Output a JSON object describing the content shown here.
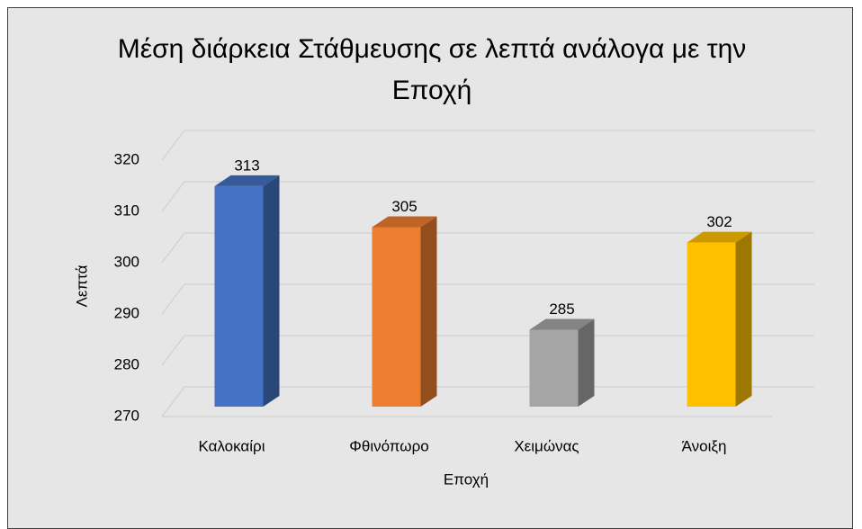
{
  "chart_data": {
    "type": "bar3d",
    "title": "Μέση διάρκεια Στάθμευσης σε λεπτά ανάλογα με την Εποχή",
    "xlabel": "Εποχή",
    "ylabel": "Λεπτά",
    "categories": [
      "Καλοκαίρι",
      "Φθινόπωρο",
      "Χειμώνας",
      "Άνοιξη"
    ],
    "values": [
      313,
      305,
      285,
      302
    ],
    "colors": [
      "#4472c4",
      "#ed7d31",
      "#a5a5a5",
      "#ffc000"
    ],
    "ylim": [
      270,
      320
    ],
    "yticks": [
      270,
      280,
      290,
      300,
      310,
      320
    ],
    "grid": true
  }
}
